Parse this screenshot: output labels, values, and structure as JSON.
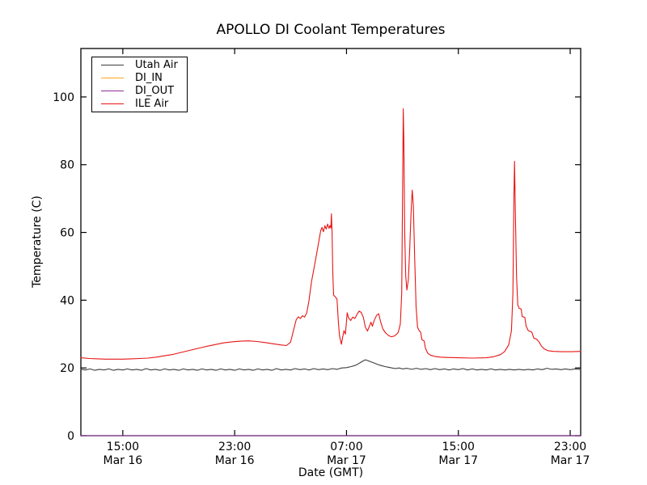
{
  "chart_data": {
    "type": "line",
    "title": "APOLLO DI Coolant Temperatures",
    "xlabel": "Date (GMT)",
    "ylabel": "Temperature (C)",
    "grid": false,
    "legend_position": "upper left",
    "x_units": "hours since Mar 16 12:00 GMT",
    "xlim": [
      0,
      35.75
    ],
    "ylim": [
      0,
      114.3
    ],
    "y_ticks": [
      0,
      20,
      40,
      60,
      80,
      100
    ],
    "x_ticks": [
      {
        "t": 3,
        "time": "15:00",
        "date": "Mar 16"
      },
      {
        "t": 11,
        "time": "23:00",
        "date": "Mar 16"
      },
      {
        "t": 19,
        "time": "07:00",
        "date": "Mar 17"
      },
      {
        "t": 27,
        "time": "15:00",
        "date": "Mar 17"
      },
      {
        "t": 35,
        "time": "23:00",
        "date": "Mar 17"
      }
    ],
    "series": [
      {
        "name": "Utah Air",
        "color": "#3d3d3d",
        "points": [
          [
            0,
            19.6
          ],
          [
            0.33,
            19.4
          ],
          [
            0.66,
            19.7
          ],
          [
            1,
            19.3
          ],
          [
            1.33,
            19.6
          ],
          [
            1.66,
            19.4
          ],
          [
            2,
            19.7
          ],
          [
            2.33,
            19.3
          ],
          [
            2.66,
            19.6
          ],
          [
            3,
            19.4
          ],
          [
            3.33,
            19.7
          ],
          [
            3.66,
            19.4
          ],
          [
            4,
            19.6
          ],
          [
            4.33,
            19.3
          ],
          [
            4.66,
            19.8
          ],
          [
            5,
            19.4
          ],
          [
            5.33,
            19.6
          ],
          [
            5.66,
            19.3
          ],
          [
            6,
            19.7
          ],
          [
            6.33,
            19.4
          ],
          [
            6.66,
            19.6
          ],
          [
            7,
            19.3
          ],
          [
            7.33,
            19.7
          ],
          [
            7.66,
            19.4
          ],
          [
            8,
            19.6
          ],
          [
            8.33,
            19.3
          ],
          [
            8.66,
            19.7
          ],
          [
            9,
            19.4
          ],
          [
            9.33,
            19.6
          ],
          [
            9.66,
            19.3
          ],
          [
            10,
            19.7
          ],
          [
            10.33,
            19.4
          ],
          [
            10.66,
            19.6
          ],
          [
            11,
            19.3
          ],
          [
            11.33,
            19.7
          ],
          [
            11.66,
            19.4
          ],
          [
            12,
            19.6
          ],
          [
            12.33,
            19.3
          ],
          [
            12.66,
            19.7
          ],
          [
            13,
            19.4
          ],
          [
            13.33,
            19.6
          ],
          [
            13.66,
            19.3
          ],
          [
            14,
            19.8
          ],
          [
            14.33,
            19.4
          ],
          [
            14.66,
            19.6
          ],
          [
            15,
            19.4
          ],
          [
            15.33,
            19.8
          ],
          [
            15.66,
            19.5
          ],
          [
            16,
            19.7
          ],
          [
            16.33,
            19.4
          ],
          [
            16.66,
            19.8
          ],
          [
            17,
            19.5
          ],
          [
            17.33,
            19.7
          ],
          [
            17.66,
            19.5
          ],
          [
            18,
            19.8
          ],
          [
            18.33,
            19.6
          ],
          [
            18.66,
            20.0
          ],
          [
            19,
            20.1
          ],
          [
            19.33,
            20.4
          ],
          [
            19.66,
            20.8
          ],
          [
            20,
            21.6
          ],
          [
            20.2,
            22.1
          ],
          [
            20.35,
            22.4
          ],
          [
            20.5,
            22.2
          ],
          [
            20.75,
            21.8
          ],
          [
            21,
            21.4
          ],
          [
            21.25,
            21.0
          ],
          [
            21.5,
            20.7
          ],
          [
            21.75,
            20.4
          ],
          [
            22,
            20.2
          ],
          [
            22.25,
            20.0
          ],
          [
            22.5,
            19.8
          ],
          [
            22.75,
            20.0
          ],
          [
            23,
            19.7
          ],
          [
            23.33,
            19.9
          ],
          [
            23.66,
            19.6
          ],
          [
            24,
            19.9
          ],
          [
            24.33,
            19.6
          ],
          [
            24.66,
            19.8
          ],
          [
            25,
            19.5
          ],
          [
            25.33,
            19.8
          ],
          [
            25.66,
            19.5
          ],
          [
            26,
            19.7
          ],
          [
            26.33,
            19.4
          ],
          [
            26.66,
            19.7
          ],
          [
            27,
            19.5
          ],
          [
            27.33,
            19.8
          ],
          [
            27.66,
            19.4
          ],
          [
            28,
            19.7
          ],
          [
            28.33,
            19.4
          ],
          [
            28.66,
            19.6
          ],
          [
            29,
            19.4
          ],
          [
            29.33,
            19.7
          ],
          [
            29.66,
            19.4
          ],
          [
            30,
            19.6
          ],
          [
            30.33,
            19.4
          ],
          [
            30.66,
            19.6
          ],
          [
            31,
            19.4
          ],
          [
            31.33,
            19.6
          ],
          [
            31.66,
            19.4
          ],
          [
            32,
            19.6
          ],
          [
            32.33,
            19.4
          ],
          [
            32.66,
            19.7
          ],
          [
            33,
            19.5
          ],
          [
            33.33,
            19.9
          ],
          [
            33.66,
            19.6
          ],
          [
            34,
            19.7
          ],
          [
            34.33,
            19.5
          ],
          [
            34.66,
            19.7
          ],
          [
            35,
            19.5
          ],
          [
            35.33,
            19.7
          ],
          [
            35.75,
            19.6
          ]
        ]
      },
      {
        "name": "DI_IN",
        "color": "#ffa320",
        "points": [
          [
            0,
            0
          ],
          [
            35.75,
            0
          ]
        ]
      },
      {
        "name": "DI_OUT",
        "color": "#8b2f97",
        "points": [
          [
            0,
            0
          ],
          [
            35.75,
            0
          ]
        ]
      },
      {
        "name": "ILE Air",
        "color": "#e81414",
        "points": [
          [
            0,
            23.0
          ],
          [
            0.6,
            22.8
          ],
          [
            1.2,
            22.7
          ],
          [
            1.8,
            22.6
          ],
          [
            2.4,
            22.6
          ],
          [
            3,
            22.6
          ],
          [
            3.6,
            22.7
          ],
          [
            4.2,
            22.8
          ],
          [
            4.8,
            22.9
          ],
          [
            5.4,
            23.2
          ],
          [
            6,
            23.6
          ],
          [
            6.6,
            24.0
          ],
          [
            7.2,
            24.6
          ],
          [
            7.8,
            25.2
          ],
          [
            8.4,
            25.8
          ],
          [
            9,
            26.4
          ],
          [
            9.6,
            26.9
          ],
          [
            10.2,
            27.4
          ],
          [
            10.8,
            27.7
          ],
          [
            11.4,
            27.9
          ],
          [
            12,
            28.0
          ],
          [
            12.6,
            27.8
          ],
          [
            13.2,
            27.5
          ],
          [
            13.8,
            27.1
          ],
          [
            14.3,
            26.8
          ],
          [
            14.7,
            26.6
          ],
          [
            15,
            27.6
          ],
          [
            15.2,
            31.0
          ],
          [
            15.4,
            34.2
          ],
          [
            15.55,
            35.1
          ],
          [
            15.7,
            34.6
          ],
          [
            15.85,
            35.4
          ],
          [
            16,
            35.0
          ],
          [
            16.15,
            36.2
          ],
          [
            16.3,
            39.5
          ],
          [
            16.5,
            45.5
          ],
          [
            16.7,
            50.0
          ],
          [
            16.9,
            54.5
          ],
          [
            17.05,
            58.0
          ],
          [
            17.15,
            60.5
          ],
          [
            17.25,
            61.5
          ],
          [
            17.35,
            60.2
          ],
          [
            17.45,
            62.0
          ],
          [
            17.55,
            61.0
          ],
          [
            17.65,
            62.5
          ],
          [
            17.75,
            61.2
          ],
          [
            17.82,
            62.0
          ],
          [
            17.88,
            61.3
          ],
          [
            17.92,
            65.5
          ],
          [
            17.97,
            60.0
          ],
          [
            18.02,
            48.0
          ],
          [
            18.08,
            41.5
          ],
          [
            18.2,
            41.0
          ],
          [
            18.32,
            40.3
          ],
          [
            18.42,
            33.5
          ],
          [
            18.5,
            29.5
          ],
          [
            18.58,
            28.0
          ],
          [
            18.64,
            27.0
          ],
          [
            18.72,
            29.0
          ],
          [
            18.82,
            31.0
          ],
          [
            18.92,
            30.0
          ],
          [
            19.05,
            36.3
          ],
          [
            19.15,
            34.8
          ],
          [
            19.3,
            34.0
          ],
          [
            19.45,
            35.0
          ],
          [
            19.6,
            34.6
          ],
          [
            19.75,
            35.8
          ],
          [
            19.9,
            36.8
          ],
          [
            20.05,
            36.4
          ],
          [
            20.2,
            35.0
          ],
          [
            20.35,
            32.0
          ],
          [
            20.5,
            30.9
          ],
          [
            20.65,
            32.5
          ],
          [
            20.75,
            33.5
          ],
          [
            20.85,
            32.3
          ],
          [
            21,
            34.2
          ],
          [
            21.15,
            35.5
          ],
          [
            21.3,
            36.0
          ],
          [
            21.45,
            33.5
          ],
          [
            21.6,
            31.5
          ],
          [
            21.8,
            30.3
          ],
          [
            22,
            29.6
          ],
          [
            22.2,
            29.2
          ],
          [
            22.4,
            29.4
          ],
          [
            22.55,
            29.8
          ],
          [
            22.7,
            30.5
          ],
          [
            22.85,
            33.0
          ],
          [
            22.95,
            42.0
          ],
          [
            23.02,
            75.0
          ],
          [
            23.06,
            96.5
          ],
          [
            23.1,
            88.0
          ],
          [
            23.16,
            60.0
          ],
          [
            23.24,
            47.0
          ],
          [
            23.32,
            43.0
          ],
          [
            23.42,
            46.0
          ],
          [
            23.52,
            55.0
          ],
          [
            23.62,
            66.0
          ],
          [
            23.7,
            72.5
          ],
          [
            23.78,
            68.0
          ],
          [
            23.88,
            52.0
          ],
          [
            23.98,
            38.0
          ],
          [
            24.08,
            32.0
          ],
          [
            24.2,
            31.0
          ],
          [
            24.3,
            30.6
          ],
          [
            24.4,
            28.3
          ],
          [
            24.55,
            28.0
          ],
          [
            24.65,
            25.8
          ],
          [
            24.8,
            24.4
          ],
          [
            25,
            23.8
          ],
          [
            25.3,
            23.4
          ],
          [
            25.7,
            23.2
          ],
          [
            26.2,
            23.1
          ],
          [
            27,
            23.0
          ],
          [
            28,
            22.9
          ],
          [
            29,
            23.0
          ],
          [
            29.5,
            23.3
          ],
          [
            30,
            23.9
          ],
          [
            30.3,
            24.8
          ],
          [
            30.6,
            26.8
          ],
          [
            30.8,
            31.0
          ],
          [
            30.9,
            42.0
          ],
          [
            30.97,
            70.0
          ],
          [
            31.02,
            81.0
          ],
          [
            31.08,
            65.0
          ],
          [
            31.16,
            47.0
          ],
          [
            31.25,
            38.6
          ],
          [
            31.35,
            37.6
          ],
          [
            31.5,
            37.4
          ],
          [
            31.56,
            35.2
          ],
          [
            31.75,
            34.9
          ],
          [
            31.85,
            32.3
          ],
          [
            32,
            31.0
          ],
          [
            32.25,
            30.6
          ],
          [
            32.4,
            28.8
          ],
          [
            32.6,
            28.5
          ],
          [
            32.78,
            27.6
          ],
          [
            32.95,
            26.4
          ],
          [
            33.15,
            25.6
          ],
          [
            33.4,
            25.1
          ],
          [
            33.8,
            24.9
          ],
          [
            34.4,
            24.8
          ],
          [
            35.1,
            24.8
          ],
          [
            35.75,
            24.9
          ]
        ]
      }
    ]
  }
}
